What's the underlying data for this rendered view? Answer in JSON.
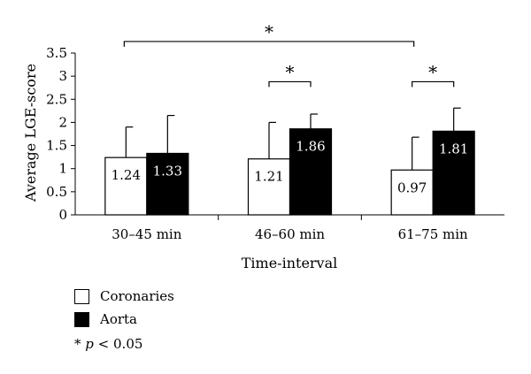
{
  "chart_data": {
    "type": "bar",
    "categories": [
      "30–45 min",
      "46–60 min",
      "61–75 min"
    ],
    "series": [
      {
        "name": "Coronaries",
        "color": "#ffffff",
        "values": [
          1.24,
          1.21,
          0.97
        ],
        "error_upper": [
          1.9,
          2.0,
          1.68
        ],
        "labels": [
          "1.24",
          "1.21",
          "0.97"
        ]
      },
      {
        "name": "Aorta",
        "color": "#000000",
        "values": [
          1.33,
          1.86,
          1.81
        ],
        "error_upper": [
          2.15,
          2.18,
          2.31
        ],
        "labels": [
          "1.33",
          "1.86",
          "1.81"
        ]
      }
    ],
    "xlabel": "Time-interval",
    "ylabel": "Average LGE-score",
    "ylim": [
      0,
      3.5
    ],
    "yticks": [
      "0",
      "0.5",
      "1",
      "1.5",
      "2",
      "2.5",
      "3",
      "3.5"
    ],
    "grid": false,
    "legend_position": "bottom-left",
    "significance": [
      {
        "label": "*",
        "from": "30–45 min",
        "to": "61–75 min",
        "level": 3.75
      },
      {
        "label": "*",
        "from": "46–60 min Coronaries",
        "to": "46–60 min Aorta",
        "level": 2.88
      },
      {
        "label": "*",
        "from": "61–75 min Coronaries",
        "to": "61–75 min Aorta",
        "level": 2.88
      }
    ]
  },
  "legend": {
    "items": [
      {
        "label": "Coronaries",
        "color": "#ffffff"
      },
      {
        "label": "Aorta",
        "color": "#000000"
      }
    ],
    "note_star": "*",
    "note_p": "p",
    "note_rest": "< 0.05"
  }
}
